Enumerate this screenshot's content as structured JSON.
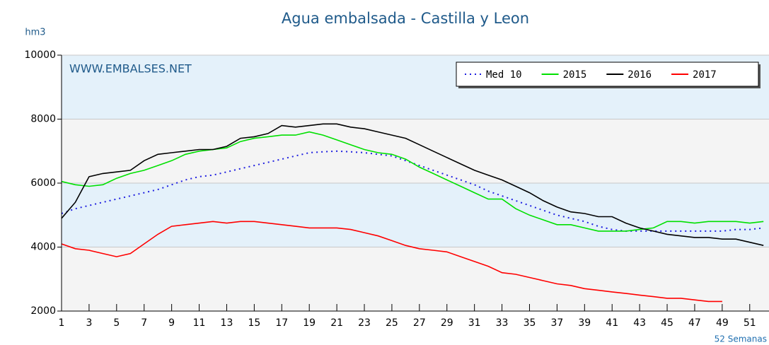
{
  "chart_data": {
    "type": "line",
    "title": "Agua embalsada - Castilla y Leon",
    "ylabel": "hm3",
    "xlabel": "52 Semanas",
    "annotation": "WWW.EMBALSES.NET",
    "x": [
      1,
      2,
      3,
      4,
      5,
      6,
      7,
      8,
      9,
      10,
      11,
      12,
      13,
      14,
      15,
      16,
      17,
      18,
      19,
      20,
      21,
      22,
      23,
      24,
      25,
      26,
      27,
      28,
      29,
      30,
      31,
      32,
      33,
      34,
      35,
      36,
      37,
      38,
      39,
      40,
      41,
      42,
      43,
      44,
      45,
      46,
      47,
      48,
      49,
      50,
      51,
      52
    ],
    "xlim": [
      1,
      52.4
    ],
    "xticks": [
      1,
      3,
      5,
      7,
      9,
      11,
      13,
      15,
      17,
      19,
      21,
      23,
      25,
      27,
      29,
      31,
      33,
      35,
      37,
      39,
      41,
      43,
      45,
      47,
      49,
      51
    ],
    "ylim": [
      2000,
      10000
    ],
    "yticks": [
      2000,
      4000,
      6000,
      8000,
      10000
    ],
    "legend": "top-right",
    "series": [
      {
        "name": "Med 10",
        "color": "#1f1fe0",
        "dash": true,
        "values": [
          5050,
          5200,
          5300,
          5400,
          5500,
          5600,
          5700,
          5800,
          5950,
          6100,
          6200,
          6250,
          6350,
          6450,
          6550,
          6650,
          6750,
          6850,
          6950,
          6980,
          7000,
          6980,
          6950,
          6900,
          6850,
          6700,
          6550,
          6400,
          6250,
          6100,
          5950,
          5750,
          5600,
          5450,
          5300,
          5150,
          5000,
          4900,
          4800,
          4650,
          4550,
          4500,
          4500,
          4500,
          4500,
          4500,
          4500,
          4500,
          4500,
          4550,
          4550,
          4600
        ]
      },
      {
        "name": "2015",
        "color": "#00e000",
        "values": [
          6050,
          5950,
          5900,
          5950,
          6150,
          6300,
          6400,
          6550,
          6700,
          6900,
          7000,
          7050,
          7100,
          7300,
          7400,
          7450,
          7500,
          7500,
          7600,
          7500,
          7350,
          7200,
          7050,
          6950,
          6900,
          6750,
          6500,
          6300,
          6100,
          5900,
          5700,
          5500,
          5500,
          5200,
          5000,
          4850,
          4700,
          4700,
          4600,
          4500,
          4500,
          4500,
          4550,
          4600,
          4800,
          4800,
          4750,
          4800,
          4800,
          4800,
          4750,
          4800
        ]
      },
      {
        "name": "2016",
        "color": "#000000",
        "values": [
          4900,
          5400,
          6200,
          6300,
          6350,
          6400,
          6700,
          6900,
          6950,
          7000,
          7050,
          7050,
          7150,
          7400,
          7450,
          7550,
          7800,
          7750,
          7800,
          7850,
          7850,
          7750,
          7700,
          7600,
          7500,
          7400,
          7200,
          7000,
          6800,
          6600,
          6400,
          6250,
          6100,
          5900,
          5700,
          5450,
          5250,
          5100,
          5050,
          4950,
          4950,
          4750,
          4600,
          4500,
          4400,
          4350,
          4300,
          4300,
          4250,
          4250,
          4150,
          4050
        ]
      },
      {
        "name": "2017",
        "color": "#ff0000",
        "values": [
          4100,
          3950,
          3900,
          3800,
          3700,
          3800,
          4100,
          4400,
          4650,
          4700,
          4750,
          4800,
          4750,
          4800,
          4800,
          4750,
          4700,
          4650,
          4600,
          4600,
          4600,
          4550,
          4450,
          4350,
          4200,
          4050,
          3950,
          3900,
          3850,
          3700,
          3550,
          3400,
          3200,
          3150,
          3050,
          2950,
          2850,
          2800,
          2700,
          2650,
          2600,
          2550,
          2500,
          2450,
          2400,
          2400,
          2350,
          2300,
          2300,
          null,
          null,
          null
        ]
      }
    ]
  }
}
